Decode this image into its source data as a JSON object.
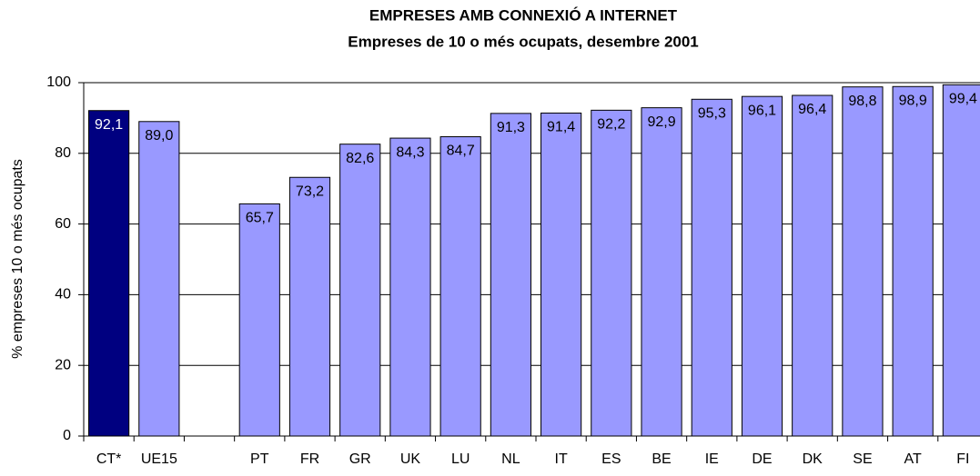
{
  "chart_data": {
    "type": "bar",
    "title": "EMPRESES AMB CONNEXIÓ A INTERNET",
    "subtitle": "Empreses de 10 o més ocupats, desembre 2001",
    "y_label": "% empreses 10 o més ocupats",
    "categories": [
      "CT*",
      "UE15",
      null,
      "PT",
      "FR",
      "GR",
      "UK",
      "LU",
      "NL",
      "IT",
      "ES",
      "BE",
      "IE",
      "DE",
      "DK",
      "SE",
      "AT",
      "FI"
    ],
    "values": [
      92.1,
      89.0,
      null,
      65.7,
      73.2,
      82.6,
      84.3,
      84.7,
      91.3,
      91.4,
      92.2,
      92.9,
      95.3,
      96.1,
      96.4,
      98.8,
      98.9,
      99.4
    ],
    "value_labels": [
      "92,1",
      "89,0",
      null,
      "65,7",
      "73,2",
      "82,6",
      "84,3",
      "84,7",
      "91,3",
      "91,4",
      "92,2",
      "92,9",
      "95,3",
      "96,1",
      "96,4",
      "98,8",
      "98,9",
      "99,4"
    ],
    "colors": [
      "#000080",
      "#9999ff",
      null,
      "#9999ff",
      "#9999ff",
      "#9999ff",
      "#9999ff",
      "#9999ff",
      "#9999ff",
      "#9999ff",
      "#9999ff",
      "#9999ff",
      "#9999ff",
      "#9999ff",
      "#9999ff",
      "#9999ff",
      "#9999ff",
      "#9999ff"
    ],
    "ylim": [
      0,
      100
    ],
    "yticks": [
      0,
      20,
      40,
      60,
      80,
      100
    ],
    "grid": true
  }
}
